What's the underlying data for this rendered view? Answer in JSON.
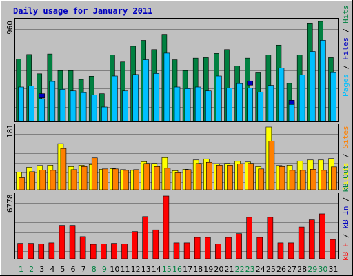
{
  "title": "Daily usage for January 2011",
  "colors": {
    "hits": "#008040",
    "files": "#00c0ff",
    "pages": "#0000c0",
    "visits": "#ffff00",
    "sites": "#ff8000",
    "kb_f": "#ff0000",
    "kb_in": "#0000c0",
    "kb_out": "#008040",
    "day_weekend": "#008040",
    "day_weekday": "#000000"
  },
  "legends": {
    "top": [
      {
        "text": "Pages",
        "color": "#00c0ff"
      },
      {
        "text": " / ",
        "color": "#000000"
      },
      {
        "text": "Files",
        "color": "#0000c0"
      },
      {
        "text": " / ",
        "color": "#000000"
      },
      {
        "text": "Hits",
        "color": "#008040"
      }
    ],
    "middle": [
      {
        "text": "Visits",
        "color": "#ffff00"
      },
      {
        "text": " / ",
        "color": "#000000"
      },
      {
        "text": "Sites",
        "color": "#ff8000"
      }
    ],
    "bottom": [
      {
        "text": "kB F",
        "color": "#ff0000"
      },
      {
        "text": " / ",
        "color": "#000000"
      },
      {
        "text": "kB In",
        "color": "#0000c0"
      },
      {
        "text": " / ",
        "color": "#000000"
      },
      {
        "text": "kB Out",
        "color": "#008040"
      }
    ]
  },
  "chart_data": {
    "type": "bar",
    "title": "Daily usage for January 2011",
    "categories": [
      "1",
      "2",
      "3",
      "4",
      "5",
      "6",
      "7",
      "8",
      "9",
      "10",
      "11",
      "12",
      "13",
      "14",
      "15",
      "16",
      "17",
      "18",
      "19",
      "20",
      "21",
      "22",
      "23",
      "24",
      "25",
      "26",
      "27",
      "28",
      "29",
      "30",
      "31"
    ],
    "weekend_days": [
      1,
      2,
      8,
      9,
      15,
      16,
      22,
      23,
      29,
      30
    ],
    "panels": [
      {
        "name": "hits-files-pages",
        "ymax_label": "960",
        "ymax": 960,
        "series": [
          {
            "name": "Hits",
            "color": "#008040",
            "values": [
              600,
              643,
              458,
              648,
              488,
              488,
              403,
              435,
              267,
              640,
              571,
              722,
              778,
              690,
              830,
              592,
              488,
              608,
              613,
              653,
              690,
              533,
              608,
              467,
              640,
              733,
              365,
              640,
              938,
              960,
              613
            ]
          },
          {
            "name": "Files",
            "color": "#00c0ff",
            "values": [
              331,
              341,
              219,
              384,
              309,
              293,
              277,
              256,
              139,
              437,
              293,
              451,
              592,
              461,
              656,
              331,
              315,
              331,
              293,
              437,
              320,
              363,
              320,
              283,
              347,
              512,
              181,
              448,
              672,
              779,
              469
            ]
          },
          {
            "name": "Pages",
            "color": "#0000c0",
            "values": [
              0,
              0,
              267,
              0,
              0,
              0,
              0,
              0,
              0,
              0,
              0,
              0,
              0,
              0,
              0,
              0,
              0,
              0,
              0,
              0,
              0,
              0,
              389,
              0,
              0,
              0,
              203,
              0,
              0,
              0,
              0
            ]
          }
        ]
      },
      {
        "name": "visits-sites",
        "ymax_label": "181",
        "ymax": 181,
        "series": [
          {
            "name": "Visits",
            "color": "#ffff00",
            "values": [
              51,
              65,
              70,
              71,
              133,
              67,
              71,
              73,
              59,
              61,
              58,
              56,
              81,
              76,
              93,
              55,
              59,
              86,
              89,
              75,
              76,
              82,
              80,
              67,
              181,
              70,
              71,
              83,
              86,
              86,
              90
            ]
          },
          {
            "name": "Sites",
            "color": "#ff8000",
            "values": [
              35,
              52,
              57,
              56,
              119,
              58,
              67,
              92,
              60,
              60,
              56,
              58,
              76,
              67,
              62,
              49,
              58,
              76,
              79,
              71,
              71,
              75,
              76,
              60,
              140,
              67,
              56,
              56,
              59,
              56,
              66
            ]
          }
        ]
      },
      {
        "name": "kb",
        "ymax_label": "6778",
        "ymax": 6778,
        "series": [
          {
            "name": "kB F",
            "color": "#ff0000",
            "values": [
              1666,
              1666,
              1589,
              1720,
              3599,
              3599,
              2390,
              1564,
              1589,
              1666,
              1589,
              2926,
              4556,
              3112,
              6778,
              1720,
              1720,
              2311,
              2311,
              1589,
              2311,
              2704,
              4480,
              2311,
              4480,
              1720,
              1720,
              3420,
              4201,
              4845,
              2078
            ]
          }
        ]
      }
    ]
  }
}
